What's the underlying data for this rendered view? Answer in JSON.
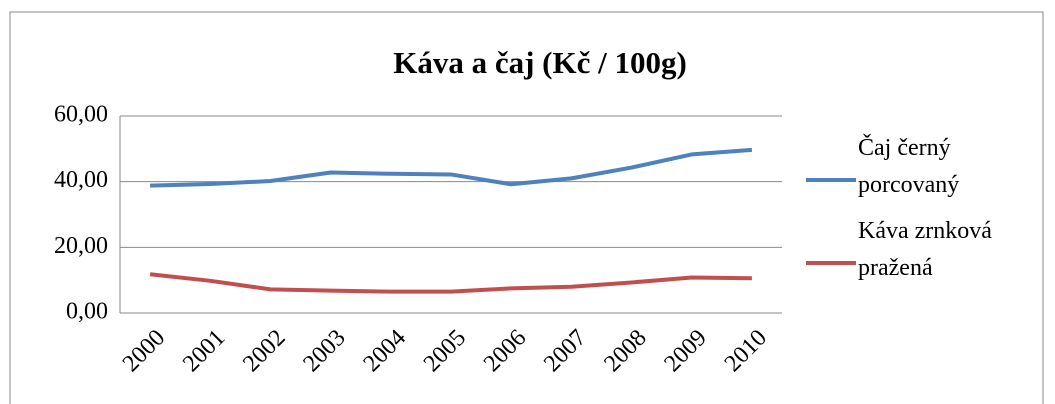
{
  "chart_data": {
    "type": "line",
    "title": "Káva a čaj (Kč / 100g)",
    "categories": [
      "2000",
      "2001",
      "2002",
      "2003",
      "2004",
      "2005",
      "2006",
      "2007",
      "2008",
      "2009",
      "2010"
    ],
    "series": [
      {
        "name": "Čaj černý porcovaný",
        "color": "#4f81bd",
        "values": [
          38.8,
          39.3,
          40.2,
          42.8,
          42.4,
          42.2,
          39.2,
          41.0,
          44.3,
          48.3,
          49.7
        ]
      },
      {
        "name": "Káva zrnková pražená",
        "color": "#c0504d",
        "values": [
          11.8,
          9.8,
          7.2,
          6.8,
          6.5,
          6.5,
          7.5,
          8.0,
          9.3,
          10.8,
          10.6
        ]
      }
    ],
    "ylim": [
      0,
      60
    ],
    "yticks": [
      {
        "value": 0,
        "label": "0,00"
      },
      {
        "value": 20,
        "label": "20,00"
      },
      {
        "value": 40,
        "label": "40,00"
      },
      {
        "value": 60,
        "label": "60,00"
      }
    ],
    "grid": true,
    "legend": "right"
  }
}
